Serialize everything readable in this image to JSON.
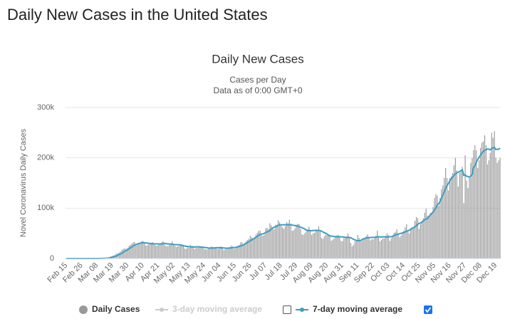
{
  "header": {
    "title": "Daily New Cases in the United States"
  },
  "chart_data": {
    "type": "bar",
    "title": "Daily New Cases",
    "subtitle": [
      "Cases per Day",
      "Data as of 0:00 GMT+0"
    ],
    "y_label": "Novel Coronavirus Daily Cases",
    "ylim": [
      0,
      300000
    ],
    "yticks": [
      0,
      {
        "value": 100000,
        "label": "100k"
      },
      {
        "value": 200000,
        "label": "200k"
      },
      {
        "value": 300000,
        "label": "300k"
      }
    ],
    "grid": true,
    "categories": [
      "Feb 15",
      null,
      null,
      null,
      null,
      null,
      null,
      null,
      null,
      null,
      null,
      "Feb 26",
      null,
      null,
      null,
      null,
      null,
      null,
      null,
      null,
      null,
      null,
      "Mar 08",
      null,
      null,
      null,
      null,
      null,
      null,
      null,
      null,
      null,
      null,
      "Mar 19",
      null,
      null,
      null,
      null,
      null,
      null,
      null,
      null,
      null,
      null,
      "Mar 30",
      null,
      null,
      null,
      null,
      null,
      null,
      null,
      null,
      null,
      null,
      "Apr 10",
      null,
      null,
      null,
      null,
      null,
      null,
      null,
      null,
      null,
      null,
      "Apr 21",
      null,
      null,
      null,
      null,
      null,
      null,
      null,
      null,
      null,
      null,
      "May 02",
      null,
      null,
      null,
      null,
      null,
      null,
      null,
      null,
      null,
      null,
      "May 13",
      null,
      null,
      null,
      null,
      null,
      null,
      null,
      null,
      null,
      null,
      "May 24",
      null,
      null,
      null,
      null,
      null,
      null,
      null,
      null,
      null,
      null,
      "Jun 04",
      null,
      null,
      null,
      null,
      null,
      null,
      null,
      null,
      null,
      null,
      "Jun 15",
      null,
      null,
      null,
      null,
      null,
      null,
      null,
      null,
      null,
      null,
      "Jun 26",
      null,
      null,
      null,
      null,
      null,
      null,
      null,
      null,
      null,
      null,
      "Jul 07",
      null,
      null,
      null,
      null,
      null,
      null,
      null,
      null,
      null,
      null,
      "Jul 18",
      null,
      null,
      null,
      null,
      null,
      null,
      null,
      null,
      null,
      null,
      "Jul 29",
      null,
      null,
      null,
      null,
      null,
      null,
      null,
      null,
      null,
      null,
      "Aug 09",
      null,
      null,
      null,
      null,
      null,
      null,
      null,
      null,
      null,
      null,
      "Aug 20",
      null,
      null,
      null,
      null,
      null,
      null,
      null,
      null,
      null,
      null,
      "Aug 31",
      null,
      null,
      null,
      null,
      null,
      null,
      null,
      null,
      null,
      null,
      "Sep 11",
      null,
      null,
      null,
      null,
      null,
      null,
      null,
      null,
      null,
      null,
      "Sep 22",
      null,
      null,
      null,
      null,
      null,
      null,
      null,
      null,
      null,
      null,
      "Oct 03",
      null,
      null,
      null,
      null,
      null,
      null,
      null,
      null,
      null,
      null,
      "Oct 14",
      null,
      null,
      null,
      null,
      null,
      null,
      null,
      null,
      null,
      null,
      "Oct 25",
      null,
      null,
      null,
      null,
      null,
      null,
      null,
      null,
      null,
      null,
      "Nov 05",
      null,
      null,
      null,
      null,
      null,
      null,
      null,
      null,
      null,
      null,
      "Nov 16",
      null,
      null,
      null,
      null,
      null,
      null,
      null,
      null,
      null,
      null,
      "Nov 27",
      null,
      null,
      null,
      null,
      null,
      null,
      null,
      null,
      null,
      null,
      "Dec 08",
      null,
      null,
      null,
      null,
      null,
      null,
      null,
      null,
      null,
      null,
      "Dec 19",
      null,
      null,
      null
    ],
    "series": [
      {
        "name": "Daily Cases",
        "mark": "bar",
        "color": "#999999",
        "values": [
          0,
          0,
          0,
          0,
          0,
          0,
          0,
          0,
          0,
          0,
          1,
          2,
          3,
          4,
          5,
          4,
          20,
          25,
          30,
          40,
          70,
          110,
          120,
          160,
          290,
          400,
          600,
          900,
          950,
          1300,
          1800,
          2600,
          4500,
          5500,
          6000,
          7800,
          9500,
          10500,
          12000,
          13500,
          17000,
          19000,
          20000,
          19000,
          21000,
          25000,
          27000,
          29500,
          32000,
          33000,
          26000,
          29000,
          31000,
          32000,
          34000,
          35000,
          30000,
          26000,
          26000,
          28000,
          29500,
          31000,
          32500,
          31000,
          26000,
          25500,
          27000,
          28000,
          31000,
          34000,
          33000,
          26000,
          24000,
          24500,
          27000,
          29500,
          34000,
          29000,
          25000,
          23000,
          24500,
          25000,
          27500,
          28000,
          25000,
          20000,
          19000,
          22000,
          21000,
          27000,
          25000,
          25000,
          19000,
          22000,
          21000,
          23000,
          23000,
          24000,
          22000,
          19000,
          18000,
          18000,
          20000,
          22000,
          24000,
          23000,
          20000,
          21000,
          20000,
          19000,
          21000,
          24000,
          22000,
          17000,
          18000,
          19000,
          21000,
          22000,
          25000,
          25000,
          19000,
          20000,
          23000,
          25000,
          27000,
          32000,
          32000,
          27000,
          31000,
          34000,
          37000,
          39000,
          45000,
          42000,
          40000,
          42000,
          47000,
          51000,
          55000,
          55000,
          47000,
          45000,
          47000,
          60000,
          61000,
          58000,
          70000,
          66000,
          60000,
          58000,
          67000,
          67000,
          76000,
          72000,
          65000,
          62000,
          59000,
          64000,
          72000,
          70000,
          77000,
          66000,
          55000,
          56000,
          60000,
          67000,
          69000,
          68000,
          59000,
          48000,
          47000,
          50000,
          53000,
          58000,
          63000,
          57000,
          47000,
          50000,
          51000,
          56000,
          55000,
          64000,
          54000,
          41000,
          39000,
          44000,
          47000,
          46000,
          48000,
          45000,
          35000,
          37000,
          40000,
          45000,
          46000,
          47000,
          44000,
          35000,
          34000,
          40000,
          41000,
          44000,
          50000,
          42000,
          31000,
          24000,
          27000,
          34000,
          36000,
          47000,
          41000,
          34000,
          35000,
          39000,
          39000,
          44000,
          48000,
          43000,
          36000,
          38000,
          38000,
          40000,
          45000,
          55000,
          43000,
          34000,
          37000,
          40000,
          40000,
          45000,
          50000,
          47000,
          35000,
          40000,
          44000,
          51000,
          53000,
          58000,
          50000,
          42000,
          45000,
          50000,
          55000,
          62000,
          68000,
          56000,
          50000,
          60000,
          62000,
          63000,
          75000,
          82000,
          80000,
          59000,
          68000,
          74000,
          80000,
          91000,
          99000,
          85000,
          85000,
          90000,
          92000,
          102000,
          120000,
          128000,
          125000,
          105000,
          120000,
          138000,
          145000,
          160000,
          180000,
          160000,
          135000,
          160000,
          163000,
          170000,
          185000,
          200000,
          175000,
          143000,
          170000,
          175000,
          182000,
          110000,
          205000,
          155000,
          140000,
          160000,
          190000,
          200000,
          215000,
          225000,
          215000,
          180000,
          195000,
          220000,
          230000,
          233000,
          245000,
          225000,
          187000,
          195000,
          210000,
          250000,
          240000,
          253000,
          200000,
          190000,
          195000,
          200000
        ]
      },
      {
        "name": "3-day moving average",
        "mark": "line",
        "color": "#cccccc",
        "visible": false,
        "checked": false
      },
      {
        "name": "7-day moving average",
        "mark": "line",
        "color": "#3a9dc4",
        "visible": true,
        "checked": true,
        "values": [
          0,
          0,
          0,
          0,
          0,
          0,
          0,
          0,
          0,
          0,
          0,
          1,
          1,
          2,
          3,
          4,
          7,
          10,
          14,
          19,
          28,
          40,
          55,
          75,
          110,
          160,
          230,
          350,
          480,
          640,
          860,
          1180,
          1720,
          2330,
          3090,
          4080,
          5260,
          6500,
          7840,
          9130,
          10780,
          12610,
          14400,
          15770,
          17270,
          19130,
          21060,
          22850,
          24790,
          26640,
          27640,
          28790,
          29640,
          30350,
          30990,
          31430,
          31000,
          31000,
          30600,
          30200,
          29900,
          29500,
          29000,
          29100,
          29100,
          29100,
          29000,
          28800,
          28900,
          29200,
          29500,
          29500,
          29400,
          28900,
          28900,
          28600,
          28300,
          27700,
          27600,
          27500,
          27500,
          27200,
          26900,
          26000,
          25500,
          24800,
          24200,
          23900,
          23400,
          23400,
          22900,
          22900,
          22800,
          23200,
          23100,
          23400,
          22800,
          22600,
          22200,
          22200,
          21600,
          21200,
          20800,
          20700,
          20700,
          20800,
          20900,
          21300,
          21600,
          21500,
          21400,
          21400,
          21300,
          20900,
          20500,
          20400,
          20700,
          20800,
          20900,
          21300,
          21600,
          21900,
          22500,
          23100,
          23800,
          24800,
          25800,
          27000,
          28500,
          30100,
          31800,
          33500,
          35300,
          36800,
          38600,
          40200,
          42100,
          44100,
          46300,
          47700,
          48400,
          49100,
          49800,
          51700,
          53100,
          53500,
          55600,
          58300,
          60400,
          62000,
          63000,
          63900,
          66500,
          66800,
          66700,
          67000,
          67100,
          66700,
          67400,
          66600,
          67300,
          67400,
          66300,
          65900,
          65400,
          64700,
          64600,
          63300,
          62300,
          61200,
          59900,
          58500,
          56600,
          55000,
          55700,
          55400,
          55200,
          55600,
          55700,
          56100,
          55700,
          55800,
          55400,
          54300,
          52700,
          51400,
          50000,
          48600,
          46300,
          45200,
          44400,
          44100,
          43600,
          43300,
          43300,
          43200,
          43100,
          43100,
          42600,
          42600,
          42000,
          41700,
          42100,
          41800,
          41200,
          39700,
          38000,
          36900,
          35800,
          35400,
          35300,
          35700,
          37300,
          39000,
          39700,
          40800,
          41000,
          41300,
          41600,
          42000,
          41900,
          42000,
          42100,
          43100,
          43100,
          42800,
          42700,
          43000,
          43000,
          43000,
          42300,
          42900,
          43000,
          43400,
          44000,
          45600,
          46800,
          47900,
          48300,
          49300,
          50000,
          50900,
          51500,
          52800,
          54200,
          55100,
          56200,
          58300,
          60000,
          61100,
          63000,
          64800,
          68200,
          69500,
          70600,
          72300,
          74700,
          77000,
          78700,
          79400,
          83200,
          86400,
          89000,
          92100,
          96200,
          100300,
          106000,
          108900,
          113200,
          120100,
          126300,
          132100,
          139500,
          144600,
          148900,
          154600,
          158100,
          161800,
          165400,
          168100,
          170300,
          171400,
          172800,
          174500,
          176100,
          165300,
          166200,
          163400,
          163000,
          161700,
          164000,
          166600,
          181000,
          183800,
          191000,
          196700,
          201000,
          205300,
          209600,
          212300,
          215100,
          216500,
          217500,
          217300,
          215900,
          218700,
          219700,
          220800,
          216600,
          217000,
          217000,
          219000
        ]
      }
    ]
  }
}
